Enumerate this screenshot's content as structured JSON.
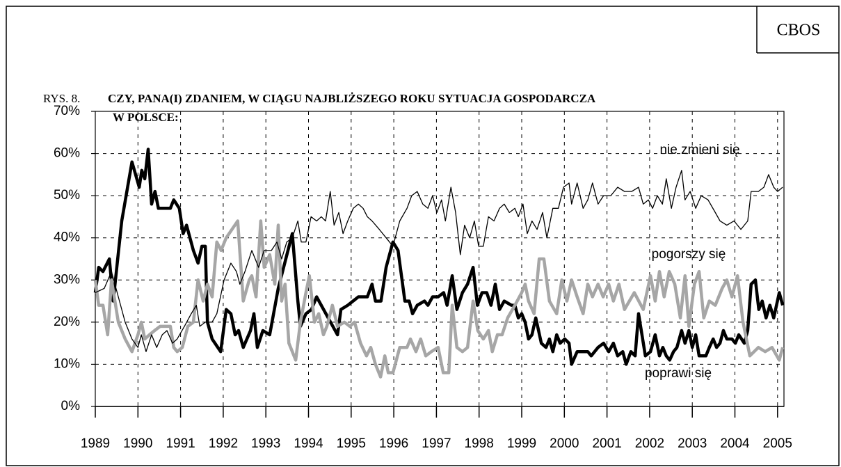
{
  "source": "CBOS",
  "figure_label": "RYS. 8.",
  "chart_data": {
    "type": "line",
    "title": [
      "CZY, PANA(I) ZDANIEM, W CIĄGU NAJBLIŻSZEGO ROKU SYTUACJA GOSPODARCZA",
      "W POLSCE:"
    ],
    "xlim": [
      1989,
      2005.15
    ],
    "xticks": [
      1989,
      1990,
      1991,
      1992,
      1993,
      1994,
      1995,
      1996,
      1997,
      1998,
      1999,
      2000,
      2001,
      2002,
      2003,
      2004,
      2005
    ],
    "ylim": [
      0,
      70
    ],
    "yticks": [
      {
        "value": 0,
        "label": "0%"
      },
      {
        "value": 10,
        "label": "10%"
      },
      {
        "value": 20,
        "label": "20%"
      },
      {
        "value": 30,
        "label": "30%"
      },
      {
        "value": 40,
        "label": "40%"
      },
      {
        "value": 50,
        "label": "50%"
      },
      {
        "value": 60,
        "label": "60%"
      },
      {
        "value": 70,
        "label": "70%"
      }
    ],
    "grid": true,
    "series": [
      {
        "name": "poprawi się",
        "color": "#000000",
        "width": 4.5,
        "x": [
          1989,
          1989.08,
          1989.18,
          1989.33,
          1989.42,
          1989.62,
          1989.86,
          1990.03,
          1990.09,
          1990.16,
          1990.24,
          1990.32,
          1990.4,
          1990.48,
          1990.76,
          1990.84,
          1990.97,
          1991.06,
          1991.14,
          1991.3,
          1991.41,
          1991.5,
          1991.58,
          1991.63,
          1991.74,
          1991.94,
          1992.07,
          1992.18,
          1992.28,
          1992.36,
          1992.47,
          1992.64,
          1992.72,
          1992.8,
          1992.93,
          1993.09,
          1993.29,
          1993.62,
          1993.75,
          1993.81,
          1993.94,
          1994.07,
          1994.19,
          1994.68,
          1994.76,
          1994.92,
          1995.17,
          1995.38,
          1995.49,
          1995.57,
          1995.7,
          1995.82,
          1995.98,
          1996.1,
          1996.26,
          1996.36,
          1996.44,
          1996.55,
          1996.72,
          1996.8,
          1996.91,
          1997.04,
          1997.17,
          1997.25,
          1997.37,
          1997.48,
          1997.61,
          1997.73,
          1997.86,
          1997.96,
          1998.07,
          1998.18,
          1998.28,
          1998.38,
          1998.48,
          1998.59,
          1998.76,
          1998.84,
          1998.92,
          1999,
          1999.08,
          1999.16,
          1999.24,
          1999.33,
          1999.46,
          1999.57,
          1999.65,
          1999.73,
          1999.82,
          1999.9,
          2000.01,
          2000.11,
          2000.17,
          2000.3,
          2000.55,
          2000.63,
          2000.79,
          2000.92,
          2001.04,
          2001.15,
          2001.25,
          2001.37,
          2001.45,
          2001.56,
          2001.66,
          2001.74,
          2001.82,
          2001.9,
          2002.02,
          2002.13,
          2002.23,
          2002.31,
          2002.39,
          2002.47,
          2002.56,
          2002.64,
          2002.75,
          2002.83,
          2002.92,
          2003,
          2003.08,
          2003.16,
          2003.32,
          2003.4,
          2003.49,
          2003.57,
          2003.65,
          2003.73,
          2003.81,
          2003.93,
          2004.01,
          2004.09,
          2004.22,
          2004.3,
          2004.38,
          2004.48,
          2004.56,
          2004.64,
          2004.73,
          2004.82,
          2004.91,
          2005.04,
          2005.12
        ],
        "values": [
          27,
          33,
          32,
          35,
          25,
          44,
          58,
          52,
          56,
          54,
          61,
          48,
          51,
          47,
          47,
          49,
          47,
          41,
          43,
          37,
          34,
          38,
          38,
          20,
          16,
          13,
          23,
          22,
          17,
          18,
          14,
          18,
          22,
          14,
          18,
          17,
          28,
          41,
          25,
          19,
          22,
          23,
          26,
          17,
          23,
          24,
          26,
          26,
          29,
          25,
          25,
          33,
          39,
          37,
          25,
          25,
          22,
          24,
          25,
          24,
          26,
          26,
          27,
          24,
          31,
          23,
          27,
          29,
          33,
          24,
          27,
          27,
          24,
          29,
          23,
          25,
          24,
          24,
          21,
          22,
          20,
          16,
          17,
          21,
          15,
          14,
          16,
          13,
          17,
          15,
          16,
          15,
          10,
          13,
          13,
          12,
          14,
          15,
          13,
          15,
          12,
          13,
          10,
          13,
          12,
          22,
          17,
          12,
          13,
          17,
          12,
          14,
          12,
          11,
          13,
          14,
          18,
          15,
          18,
          14,
          17,
          12,
          12,
          14,
          16,
          14,
          15,
          18,
          16,
          16,
          15,
          17,
          15,
          18,
          29,
          30,
          23,
          25,
          21,
          24,
          21,
          27,
          24
        ]
      },
      {
        "name": "pogorszy się",
        "color": "#a6a6a6",
        "width": 4.5,
        "x": [
          1989,
          1989.08,
          1989.18,
          1989.29,
          1989.38,
          1989.54,
          1989.7,
          1989.86,
          1990,
          1990.08,
          1990.16,
          1990.27,
          1990.39,
          1990.52,
          1990.76,
          1990.84,
          1990.92,
          1991.04,
          1991.17,
          1991.3,
          1991.41,
          1991.53,
          1991.63,
          1991.74,
          1991.85,
          1991.95,
          1992.07,
          1992.34,
          1992.47,
          1992.61,
          1992.67,
          1992.77,
          1992.88,
          1992.96,
          1993.09,
          1993.21,
          1993.29,
          1993.37,
          1993.45,
          1993.54,
          1993.7,
          1993.81,
          1993.94,
          1994.02,
          1994.14,
          1994.24,
          1994.35,
          1994.43,
          1994.56,
          1994.68,
          1994.84,
          1994.97,
          1995.08,
          1995.22,
          1995.36,
          1995.46,
          1995.57,
          1995.69,
          1995.79,
          1995.87,
          1995.98,
          1996.14,
          1996.31,
          1996.39,
          1996.52,
          1996.63,
          1996.75,
          1996.88,
          1997.04,
          1997.16,
          1997.29,
          1997.37,
          1997.48,
          1997.61,
          1997.73,
          1997.86,
          1997.97,
          1998.1,
          1998.22,
          1998.31,
          1998.43,
          1998.54,
          1998.67,
          1998.84,
          1999,
          1999.08,
          1999.16,
          1999.29,
          1999.41,
          1999.52,
          1999.65,
          1999.82,
          1999.94,
          2000.06,
          2000.17,
          2000.3,
          2000.44,
          2000.55,
          2000.66,
          2000.79,
          2000.91,
          2001.04,
          2001.15,
          2001.28,
          2001.41,
          2001.64,
          2001.85,
          2002.02,
          2002.13,
          2002.23,
          2002.34,
          2002.46,
          2002.59,
          2002.72,
          2002.83,
          2002.92,
          2003.05,
          2003.16,
          2003.27,
          2003.4,
          2003.54,
          2003.7,
          2003.81,
          2003.93,
          2004.06,
          2004.19,
          2004.35,
          2004.55,
          2004.71,
          2004.87,
          2005.04,
          2005.12
        ],
        "values": [
          30,
          24,
          24,
          17,
          30,
          20,
          16,
          13,
          17,
          20,
          16,
          17,
          18,
          19,
          19,
          14,
          13,
          14,
          19,
          20,
          30,
          25,
          29,
          26,
          39,
          37,
          40,
          44,
          25,
          30,
          31,
          26,
          44,
          33,
          36,
          29,
          43,
          25,
          29,
          15,
          11,
          20,
          27,
          31,
          20,
          22,
          17,
          19,
          24,
          19,
          20,
          19,
          20,
          15,
          12,
          14,
          10,
          7,
          12,
          8,
          8,
          14,
          14,
          16,
          13,
          16,
          12,
          13,
          14,
          8,
          8,
          24,
          14,
          13,
          14,
          25,
          18,
          16,
          18,
          13,
          17,
          17,
          21,
          24,
          27,
          29,
          25,
          22,
          35,
          35,
          25,
          22,
          30,
          25,
          30,
          26,
          22,
          29,
          26,
          29,
          26,
          29,
          25,
          29,
          23,
          27,
          23,
          31,
          25,
          32,
          26,
          32,
          29,
          21,
          31,
          19,
          29,
          32,
          21,
          25,
          24,
          28,
          30,
          26,
          31,
          20,
          12,
          14,
          13,
          14,
          11,
          14
        ]
      },
      {
        "name": "nie zmieni się",
        "color": "#000000",
        "width": 1.3,
        "x": [
          1989,
          1989.21,
          1989.38,
          1989.54,
          1989.7,
          1989.86,
          1990,
          1990.08,
          1990.19,
          1990.32,
          1990.44,
          1990.57,
          1990.68,
          1990.81,
          1990.92,
          1991.09,
          1991.25,
          1991.37,
          1991.45,
          1991.58,
          1991.74,
          1991.85,
          1992.02,
          1992.18,
          1992.31,
          1992.39,
          1992.51,
          1992.67,
          1992.83,
          1992.96,
          1993.13,
          1993.26,
          1993.37,
          1993.49,
          1993.62,
          1993.75,
          1993.83,
          1993.94,
          1994.06,
          1994.19,
          1994.3,
          1994.4,
          1994.51,
          1994.6,
          1994.71,
          1994.81,
          1994.92,
          1995.05,
          1995.17,
          1995.28,
          1995.38,
          1995.49,
          1995.66,
          1995.82,
          1995.98,
          1996.14,
          1996.31,
          1996.42,
          1996.55,
          1996.68,
          1996.8,
          1996.91,
          1997.01,
          1997.12,
          1997.21,
          1997.34,
          1997.45,
          1997.56,
          1997.66,
          1997.78,
          1997.89,
          1997.99,
          1998.1,
          1998.22,
          1998.35,
          1998.48,
          1998.59,
          1998.71,
          1998.84,
          1998.92,
          1999.03,
          1999.13,
          1999.24,
          1999.36,
          1999.49,
          1999.59,
          1999.73,
          1999.86,
          1999.98,
          2000.11,
          2000.17,
          2000.3,
          2000.44,
          2000.55,
          2000.66,
          2000.79,
          2000.92,
          2001.09,
          2001.25,
          2001.41,
          2001.58,
          2001.74,
          2001.85,
          2001.97,
          2002.07,
          2002.18,
          2002.3,
          2002.39,
          2002.51,
          2002.62,
          2002.75,
          2002.83,
          2002.95,
          2003.08,
          2003.21,
          2003.37,
          2003.54,
          2003.65,
          2003.81,
          2003.98,
          2004.14,
          2004.3,
          2004.38,
          2004.55,
          2004.68,
          2004.79,
          2004.91,
          2005,
          2005.12
        ],
        "values": [
          27,
          28,
          32,
          26,
          20,
          16,
          14,
          17,
          13,
          17,
          14,
          17,
          18,
          15,
          16,
          19,
          22,
          24,
          19,
          20,
          20,
          22,
          30,
          34,
          32,
          29,
          32,
          37,
          33,
          37,
          37,
          39,
          35,
          39,
          40,
          44,
          39,
          39,
          45,
          44,
          45,
          44,
          51,
          43,
          46,
          41,
          44,
          47,
          48,
          47,
          45,
          44,
          42,
          40,
          38,
          44,
          47,
          50,
          51,
          48,
          47,
          50,
          46,
          49,
          44,
          52,
          46,
          36,
          43,
          40,
          44,
          38,
          38,
          45,
          44,
          47,
          48,
          46,
          47,
          45,
          48,
          41,
          44,
          42,
          46,
          40,
          47,
          47,
          52,
          53,
          48,
          53,
          47,
          49,
          53,
          48,
          50,
          50,
          52,
          51,
          51,
          52,
          48,
          49,
          47,
          50,
          48,
          54,
          47,
          52,
          56,
          49,
          51,
          47,
          50,
          49,
          46,
          44,
          43,
          44,
          42,
          44,
          51,
          51,
          52,
          55,
          52,
          51,
          52
        ]
      }
    ]
  }
}
